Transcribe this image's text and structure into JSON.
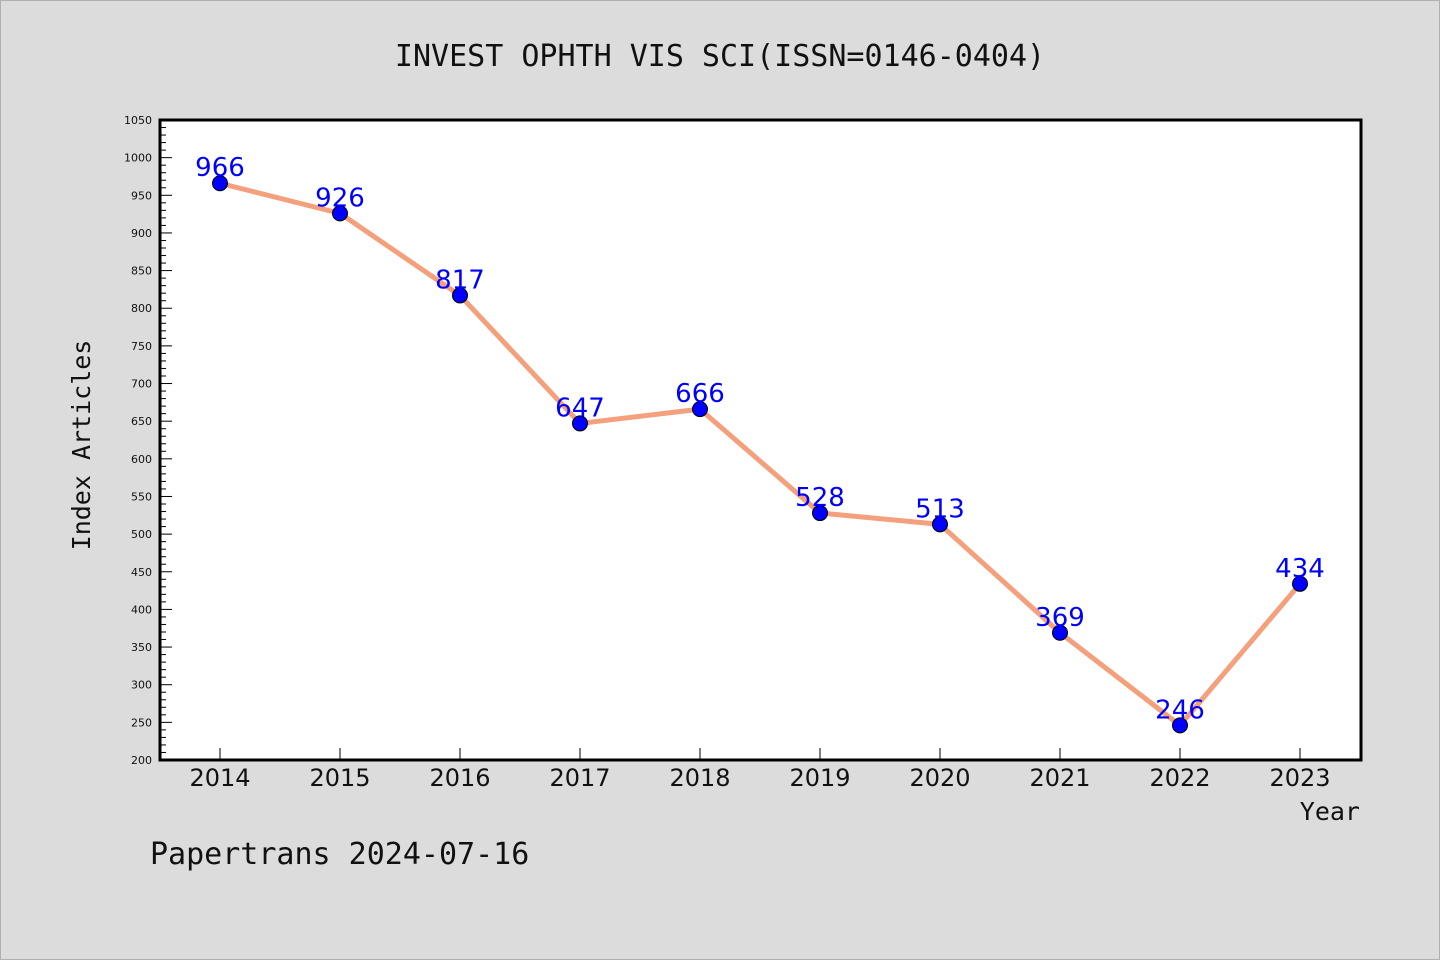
{
  "chart_data": {
    "type": "line",
    "title": "INVEST OPHTH VIS SCI(ISSN=0146-0404)",
    "xlabel": "Year",
    "ylabel": "Index Articles",
    "categories": [
      "2014",
      "2015",
      "2016",
      "2017",
      "2018",
      "2019",
      "2020",
      "2021",
      "2022",
      "2023"
    ],
    "values": [
      966,
      926,
      817,
      647,
      666,
      528,
      513,
      369,
      246,
      434
    ],
    "data_labels": [
      "966",
      "926",
      "817",
      "647",
      "666",
      "528",
      "513",
      "369",
      "246",
      "434"
    ],
    "ylim": [
      200,
      1050
    ],
    "yticks": [
      200,
      250,
      300,
      350,
      400,
      450,
      500,
      550,
      600,
      650,
      700,
      750,
      800,
      850,
      900,
      950,
      1000,
      1050
    ],
    "grid": false,
    "line_color": "#f4a07c",
    "marker_color": "#0000ff",
    "label_color": "#0000ff"
  },
  "footer": "Papertrans 2024-07-16"
}
